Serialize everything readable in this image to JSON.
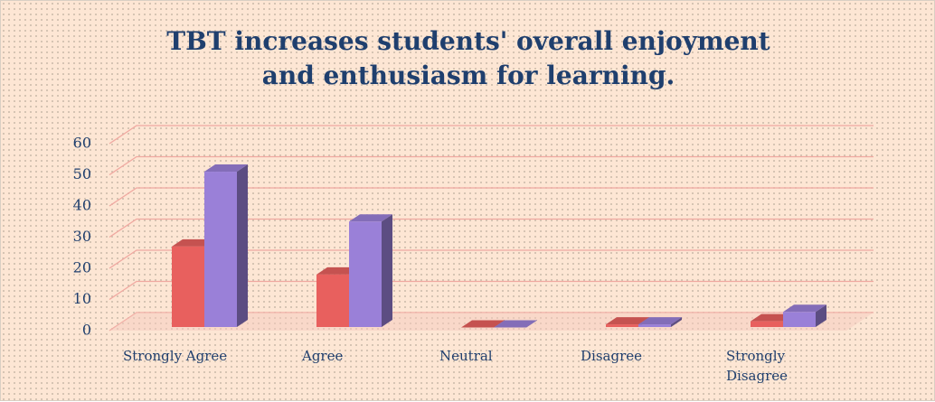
{
  "chart_data": {
    "type": "bar3d",
    "title": "TBT increases students' overall enjoyment and enthusiasm for learning.",
    "categories": [
      "Strongly Agree",
      "Agree",
      "Neutral",
      "Disagree",
      "Strongly Disagree"
    ],
    "series": [
      {
        "color": "#e8605e",
        "values": [
          27,
          18,
          1,
          2,
          3
        ]
      },
      {
        "color": "#9a80d8",
        "values": [
          51,
          35,
          1,
          2,
          6
        ]
      }
    ],
    "ylim": [
      0,
      60
    ],
    "yticks": [
      0,
      10,
      20,
      30,
      40,
      50,
      60
    ],
    "grid": true
  }
}
